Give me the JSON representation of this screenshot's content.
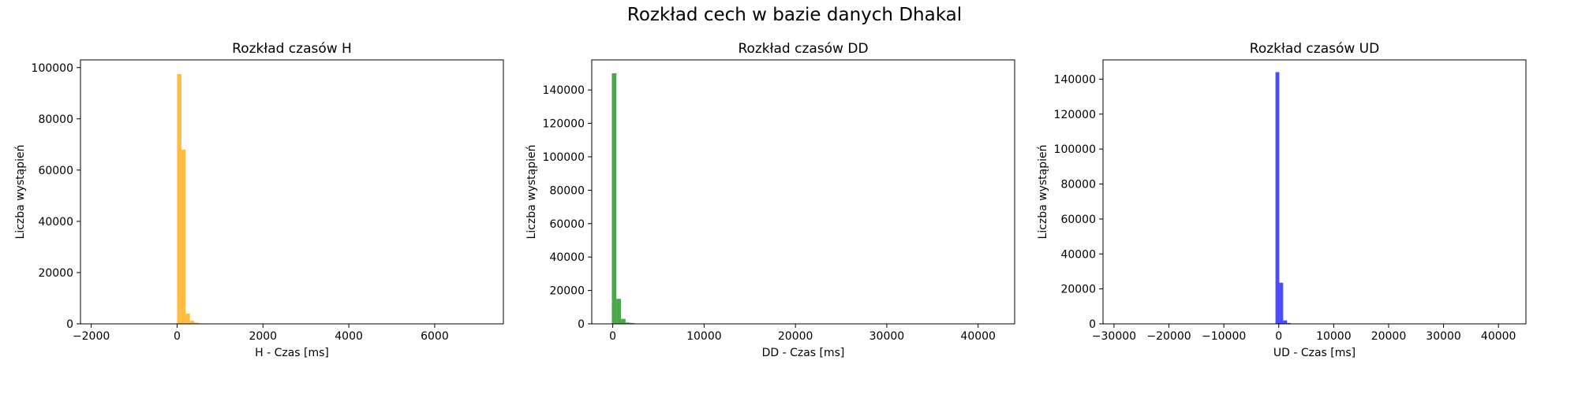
{
  "figure": {
    "suptitle": "Rozkład cech w bazie danych Dhakal"
  },
  "chart_data": [
    {
      "type": "bar",
      "title": "Rozkład czasów H",
      "xlabel": "H - Czas [ms]",
      "ylabel": "Liczba wystąpień",
      "xlim": [
        -2250,
        7600
      ],
      "ylim": [
        0,
        103000
      ],
      "xticks": [
        -2000,
        0,
        2000,
        4000,
        6000
      ],
      "yticks": [
        0,
        20000,
        40000,
        60000,
        80000,
        100000
      ],
      "color": "#FFA500",
      "opacity": 0.75,
      "bin_width": 100,
      "bins": [
        {
          "x0": 0,
          "x1": 100,
          "count": 97500
        },
        {
          "x0": 100,
          "x1": 200,
          "count": 68000
        },
        {
          "x0": 200,
          "x1": 300,
          "count": 4000
        },
        {
          "x0": 300,
          "x1": 400,
          "count": 1200
        },
        {
          "x0": 400,
          "x1": 500,
          "count": 500
        },
        {
          "x0": 500,
          "x1": 600,
          "count": 200
        }
      ]
    },
    {
      "type": "bar",
      "title": "Rozkład czasów DD",
      "xlabel": "DD - Czas [ms]",
      "ylabel": "Liczba wystąpień",
      "xlim": [
        -2300,
        44000
      ],
      "ylim": [
        0,
        158000
      ],
      "xticks": [
        0,
        10000,
        20000,
        30000,
        40000
      ],
      "yticks": [
        0,
        20000,
        40000,
        60000,
        80000,
        100000,
        120000,
        140000
      ],
      "color": "#008000",
      "opacity": 0.7,
      "bin_width": 500,
      "bins": [
        {
          "x0": -100,
          "x1": 400,
          "count": 150000
        },
        {
          "x0": 400,
          "x1": 900,
          "count": 15000
        },
        {
          "x0": 900,
          "x1": 1400,
          "count": 3000
        },
        {
          "x0": 1400,
          "x1": 1900,
          "count": 800
        },
        {
          "x0": 1900,
          "x1": 2400,
          "count": 500
        },
        {
          "x0": 2400,
          "x1": 2900,
          "count": 200
        }
      ]
    },
    {
      "type": "bar",
      "title": "Rozkład czasów UD",
      "xlabel": "UD - Czas [ms]",
      "ylabel": "Liczba wystąpień",
      "xlim": [
        -32000,
        45000
      ],
      "ylim": [
        0,
        151000
      ],
      "xticks": [
        -30000,
        -20000,
        -10000,
        0,
        10000,
        20000,
        30000,
        40000
      ],
      "yticks": [
        0,
        20000,
        40000,
        60000,
        80000,
        100000,
        120000,
        140000
      ],
      "color": "#0000FF",
      "opacity": 0.7,
      "bin_width": 700,
      "bins": [
        {
          "x0": -600,
          "x1": 100,
          "count": 144000
        },
        {
          "x0": 100,
          "x1": 800,
          "count": 23500
        },
        {
          "x0": 800,
          "x1": 1500,
          "count": 2000
        },
        {
          "x0": 1500,
          "x1": 2200,
          "count": 500
        }
      ]
    }
  ]
}
